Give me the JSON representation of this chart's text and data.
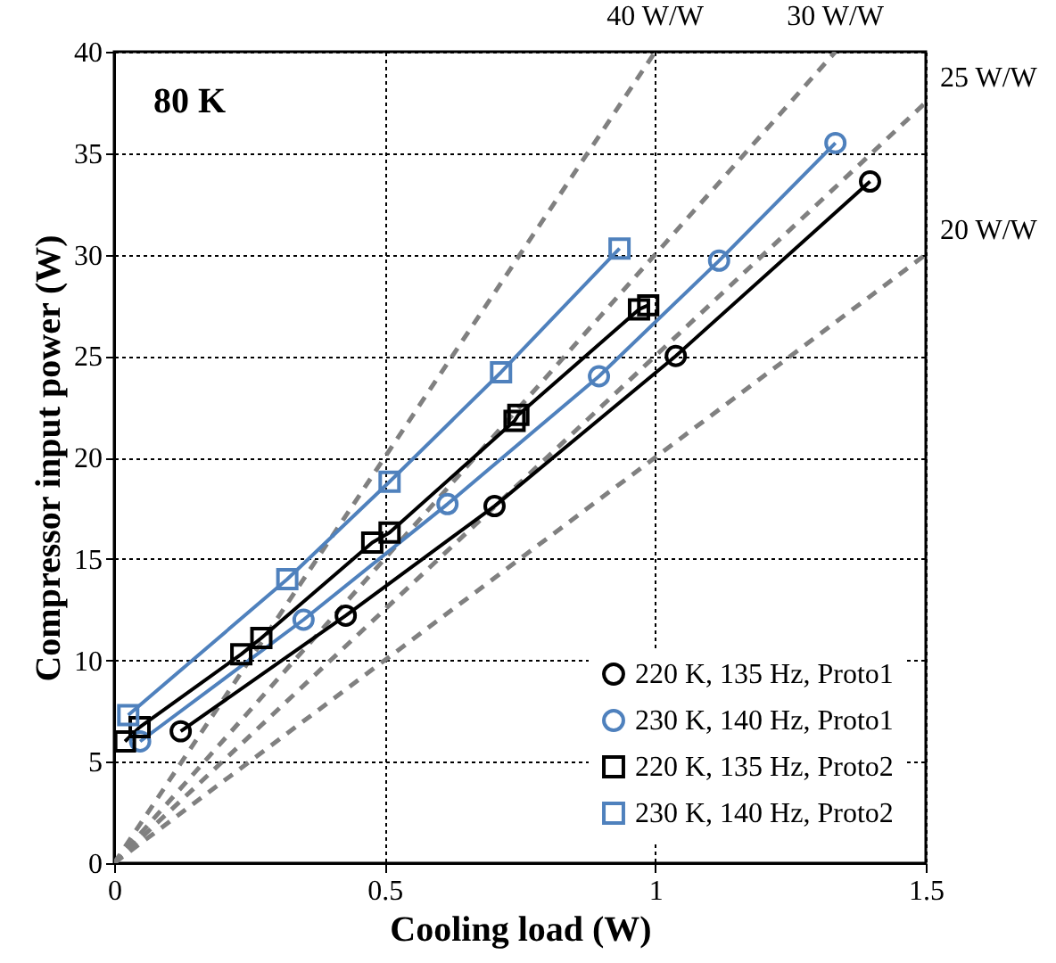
{
  "chart_data": {
    "type": "line",
    "xlabel": "Cooling load (W)",
    "ylabel": "Compressor input power (W)",
    "annotations": [
      "80 K"
    ],
    "xlim": [
      0,
      1.5
    ],
    "ylim": [
      0,
      40
    ],
    "xticks": [
      0,
      0.5,
      1,
      1.5
    ],
    "yticks": [
      0,
      5,
      10,
      15,
      20,
      25,
      30,
      35,
      40
    ],
    "grid": true,
    "legend": "bottom right",
    "series": [
      {
        "name": "220 K, 135 Hz, Proto1",
        "color": "#000000",
        "marker": "circle",
        "line_style": "solid",
        "x": [
          0.123,
          0.428,
          0.703,
          1.038,
          1.397
        ],
        "values": [
          6.5,
          12.2,
          17.6,
          25.0,
          33.6
        ]
      },
      {
        "name": "230 K, 140 Hz, Proto1",
        "color": "#4f81bd",
        "marker": "circle",
        "line_style": "solid",
        "x": [
          0.048,
          0.35,
          0.616,
          0.896,
          1.118,
          1.333
        ],
        "values": [
          6.0,
          12.0,
          17.7,
          24.0,
          29.7,
          35.5
        ]
      },
      {
        "name": "220 K, 135 Hz, Proto2",
        "color": "#000000",
        "marker": "square",
        "line_style": "solid",
        "x": [
          0.02,
          0.047,
          0.235,
          0.272,
          0.477,
          0.509,
          0.74,
          0.747,
          0.97,
          0.987
        ],
        "values": [
          6.0,
          6.7,
          10.3,
          11.1,
          15.8,
          16.3,
          21.8,
          22.1,
          27.3,
          27.5
        ]
      },
      {
        "name": "230 K, 140 Hz, Proto2",
        "color": "#4f81bd",
        "marker": "square",
        "line_style": "solid",
        "x": [
          0.026,
          0.32,
          0.509,
          0.715,
          0.934
        ],
        "values": [
          7.3,
          14.0,
          18.8,
          24.2,
          30.3
        ]
      },
      {
        "name": "40 W/W",
        "color": "#808080",
        "marker": "none",
        "line_style": "dashed",
        "x": [
          0,
          1.0
        ],
        "values": [
          0,
          40
        ]
      },
      {
        "name": "30 W/W",
        "color": "#808080",
        "marker": "none",
        "line_style": "dashed",
        "x": [
          0,
          1.333
        ],
        "values": [
          0,
          40
        ]
      },
      {
        "name": "25 W/W",
        "color": "#808080",
        "marker": "none",
        "line_style": "dashed",
        "x": [
          0,
          1.5
        ],
        "values": [
          0,
          37.5
        ]
      },
      {
        "name": "20 W/W",
        "color": "#808080",
        "marker": "none",
        "line_style": "dashed",
        "x": [
          0,
          1.5
        ],
        "values": [
          0,
          30
        ]
      }
    ]
  }
}
